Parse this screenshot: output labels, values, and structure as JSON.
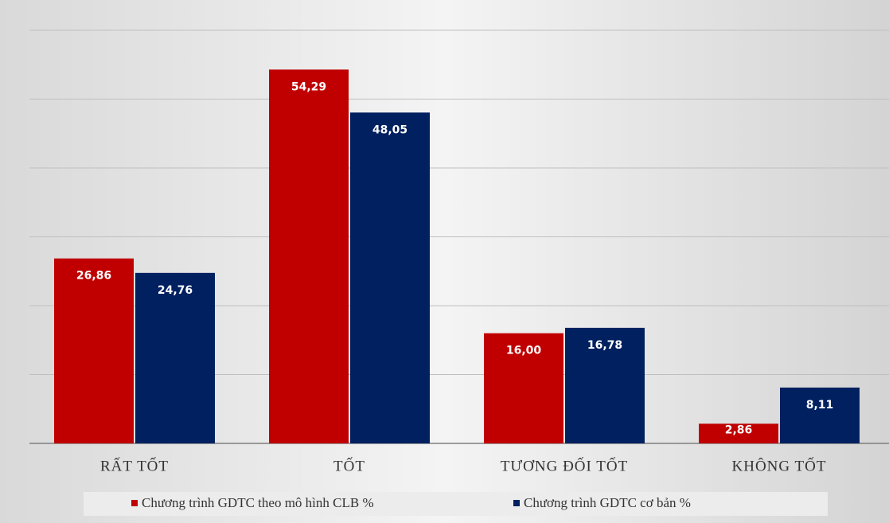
{
  "chart_data": {
    "type": "bar",
    "categories": [
      "RẤT TỐT",
      "TỐT",
      "TƯƠNG ĐỐI TỐT",
      "KHÔNG TỐT"
    ],
    "series": [
      {
        "name": "Chương trình GDTC theo mô hình CLB %",
        "color": "#c00000",
        "values": [
          26.86,
          54.29,
          16.0,
          2.86
        ],
        "value_labels": [
          "26,86",
          "54,29",
          "16,00",
          "2,86"
        ]
      },
      {
        "name": "Chương trình GDTC cơ bản %",
        "color": "#002060",
        "values": [
          24.76,
          48.05,
          16.78,
          8.11
        ],
        "value_labels": [
          "24,76",
          "48,05",
          "16,78",
          "8,11"
        ]
      }
    ],
    "ylim": [
      0,
      60
    ],
    "yticks": [
      0,
      10,
      20,
      30,
      40,
      50,
      60
    ],
    "grid": true,
    "legend": "bottom"
  }
}
